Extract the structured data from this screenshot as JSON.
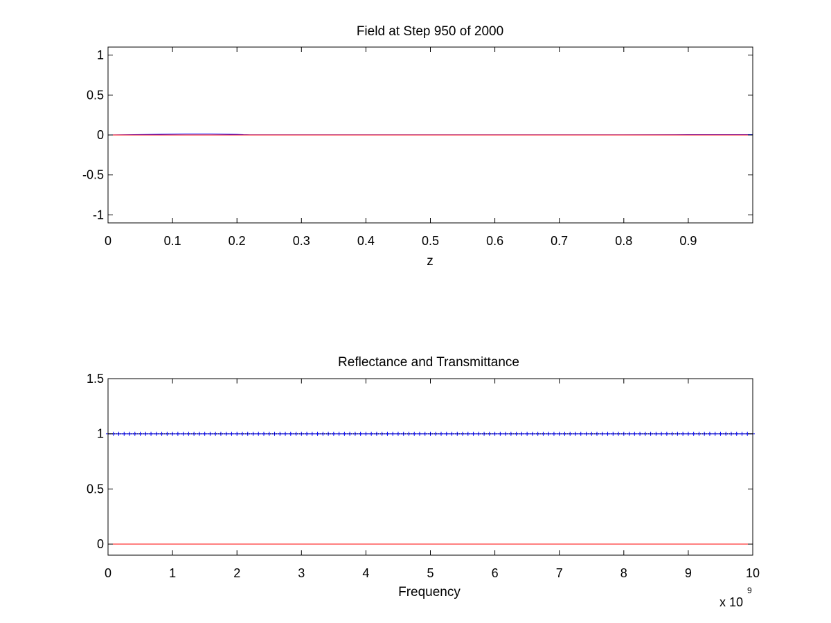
{
  "figure": {
    "background": "#ffffff"
  },
  "chart_data": [
    {
      "type": "line",
      "title": "Field at Step 950 of 2000",
      "xlabel": "z",
      "ylabel": "",
      "xlim": [
        0,
        1
      ],
      "ylim": [
        -1.1,
        1.1
      ],
      "xticks": [
        0,
        0.1,
        0.2,
        0.3,
        0.4,
        0.5,
        0.6,
        0.7,
        0.8,
        0.9
      ],
      "xtick_labels": [
        "0",
        "0.1",
        "0.2",
        "0.3",
        "0.4",
        "0.5",
        "0.6",
        "0.7",
        "0.8",
        "0.9"
      ],
      "yticks": [
        1,
        0.5,
        0,
        -0.5,
        -1
      ],
      "ytick_labels": [
        "1",
        "0.5",
        "0",
        "-0.5",
        "-1"
      ],
      "grid": false,
      "series": [
        {
          "color": "#0000ff",
          "x": [
            0,
            0.04,
            0.08,
            0.12,
            0.16,
            0.2,
            0.21,
            0.22,
            0.3,
            0.4,
            0.5,
            0.6,
            0.7,
            0.8,
            0.88,
            0.9,
            0.95,
            1.0
          ],
          "y": [
            0,
            0.004,
            0.009,
            0.012,
            0.012,
            0.008,
            0.004,
            0.002,
            0.002,
            0.002,
            0.002,
            0.002,
            0.002,
            0.002,
            0.003,
            0.004,
            0.004,
            0.004
          ]
        },
        {
          "color": "#ff0000",
          "x": [
            0,
            0.25,
            0.5,
            0.75,
            1.0
          ],
          "y": [
            0,
            0,
            0,
            0,
            0
          ]
        }
      ]
    },
    {
      "type": "line",
      "title": "Reflectance and Transmittance",
      "xlabel": "Frequency",
      "ylabel": "",
      "x_multiplier": "x 10",
      "x_multiplier_exponent": "9",
      "xlim": [
        0,
        10
      ],
      "ylim": [
        -0.1,
        1.5
      ],
      "xticks": [
        0,
        1,
        2,
        3,
        4,
        5,
        6,
        7,
        8,
        9,
        10
      ],
      "xtick_labels": [
        "0",
        "1",
        "2",
        "3",
        "4",
        "5",
        "6",
        "7",
        "8",
        "9",
        "10"
      ],
      "yticks": [
        1.5,
        1,
        0.5,
        0
      ],
      "ytick_labels": [
        "1.5",
        "1",
        "0.5",
        "0"
      ],
      "grid": false,
      "series": [
        {
          "color": "#0000ff",
          "marker": "+",
          "x": [
            0,
            10
          ],
          "y": [
            1,
            1
          ]
        },
        {
          "color": "#000000",
          "marker": ":",
          "x": [
            0,
            10
          ],
          "y": [
            1,
            1
          ]
        },
        {
          "color": "#ff0000",
          "x": [
            0,
            10
          ],
          "y": [
            0,
            0
          ]
        }
      ]
    }
  ]
}
